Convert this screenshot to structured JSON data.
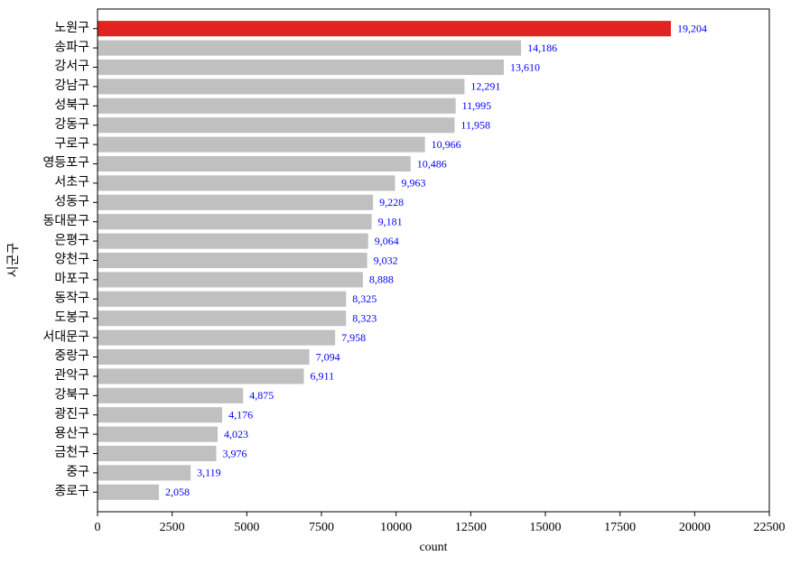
{
  "chart_data": {
    "type": "bar",
    "orientation": "horizontal",
    "x_label": "count",
    "y_label": "시군구",
    "categories": [
      "노원구",
      "송파구",
      "강서구",
      "강남구",
      "성북구",
      "강동구",
      "구로구",
      "영등포구",
      "서초구",
      "성동구",
      "동대문구",
      "은평구",
      "양천구",
      "마포구",
      "동작구",
      "도봉구",
      "서대문구",
      "중랑구",
      "관악구",
      "강북구",
      "광진구",
      "용산구",
      "금천구",
      "중구",
      "종로구"
    ],
    "values": [
      19204,
      14186,
      13610,
      12291,
      11995,
      11958,
      10966,
      10486,
      9963,
      9228,
      9181,
      9064,
      9032,
      8888,
      8325,
      8323,
      7958,
      7094,
      6911,
      4875,
      4176,
      4023,
      3976,
      3119,
      2058
    ],
    "value_labels": [
      "19,204",
      "14,186",
      "13,610",
      "12,291",
      "11,995",
      "11,958",
      "10,966",
      "10,486",
      "9,963",
      "9,228",
      "9,181",
      "9,064",
      "9,032",
      "8,888",
      "8,325",
      "8,323",
      "7,958",
      "7,094",
      "6,911",
      "4,875",
      "4,176",
      "4,023",
      "3,976",
      "3,119",
      "2,058"
    ],
    "colors": [
      "#e32222",
      "#c0c0c0",
      "#c0c0c0",
      "#c0c0c0",
      "#c0c0c0",
      "#c0c0c0",
      "#c0c0c0",
      "#c0c0c0",
      "#c0c0c0",
      "#c0c0c0",
      "#c0c0c0",
      "#c0c0c0",
      "#c0c0c0",
      "#c0c0c0",
      "#c0c0c0",
      "#c0c0c0",
      "#c0c0c0",
      "#c0c0c0",
      "#c0c0c0",
      "#c0c0c0",
      "#c0c0c0",
      "#c0c0c0",
      "#c0c0c0",
      "#c0c0c0",
      "#c0c0c0"
    ],
    "value_label_color": "#0000ff",
    "xlim": [
      0,
      22500
    ],
    "xticks": [
      0,
      2500,
      5000,
      7500,
      10000,
      12500,
      15000,
      17500,
      20000,
      22500
    ],
    "grid": false
  }
}
